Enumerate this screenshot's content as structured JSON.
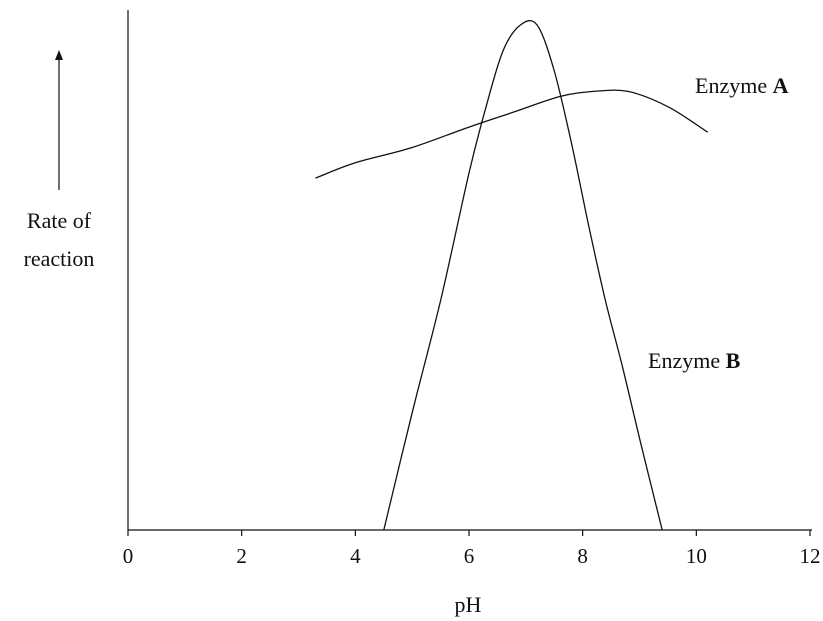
{
  "chart_data": {
    "type": "line",
    "title": "",
    "xlabel": "pH",
    "ylabel_lines": [
      "Rate of",
      "reaction"
    ],
    "xlim": [
      0,
      12
    ],
    "ylim": [
      0,
      1
    ],
    "x_ticks": [
      0,
      2,
      4,
      6,
      8,
      10,
      12
    ],
    "x_tick_labels": [
      "0",
      "2",
      "4",
      "6",
      "8",
      "10",
      "12"
    ],
    "grid": false,
    "y_axis_arrow": true,
    "series": [
      {
        "name": "Enzyme A",
        "label_prefix": "Enzyme ",
        "label_letter": "A",
        "color": "#111111",
        "points": [
          [
            3.3,
            0.69
          ],
          [
            4.0,
            0.72
          ],
          [
            5.0,
            0.75
          ],
          [
            6.0,
            0.79
          ],
          [
            6.8,
            0.82
          ],
          [
            7.6,
            0.85
          ],
          [
            8.2,
            0.86
          ],
          [
            8.8,
            0.86
          ],
          [
            9.5,
            0.83
          ],
          [
            10.2,
            0.78
          ]
        ]
      },
      {
        "name": "Enzyme B",
        "label_prefix": "Enzyme ",
        "label_letter": "B",
        "color": "#111111",
        "points": [
          [
            4.5,
            0.0
          ],
          [
            5.0,
            0.23
          ],
          [
            5.5,
            0.45
          ],
          [
            6.0,
            0.7
          ],
          [
            6.3,
            0.83
          ],
          [
            6.6,
            0.94
          ],
          [
            6.9,
            0.99
          ],
          [
            7.2,
            0.99
          ],
          [
            7.5,
            0.9
          ],
          [
            7.8,
            0.76
          ],
          [
            8.1,
            0.6
          ],
          [
            8.4,
            0.45
          ],
          [
            8.7,
            0.32
          ],
          [
            9.0,
            0.18
          ],
          [
            9.4,
            0.0
          ]
        ]
      }
    ]
  }
}
